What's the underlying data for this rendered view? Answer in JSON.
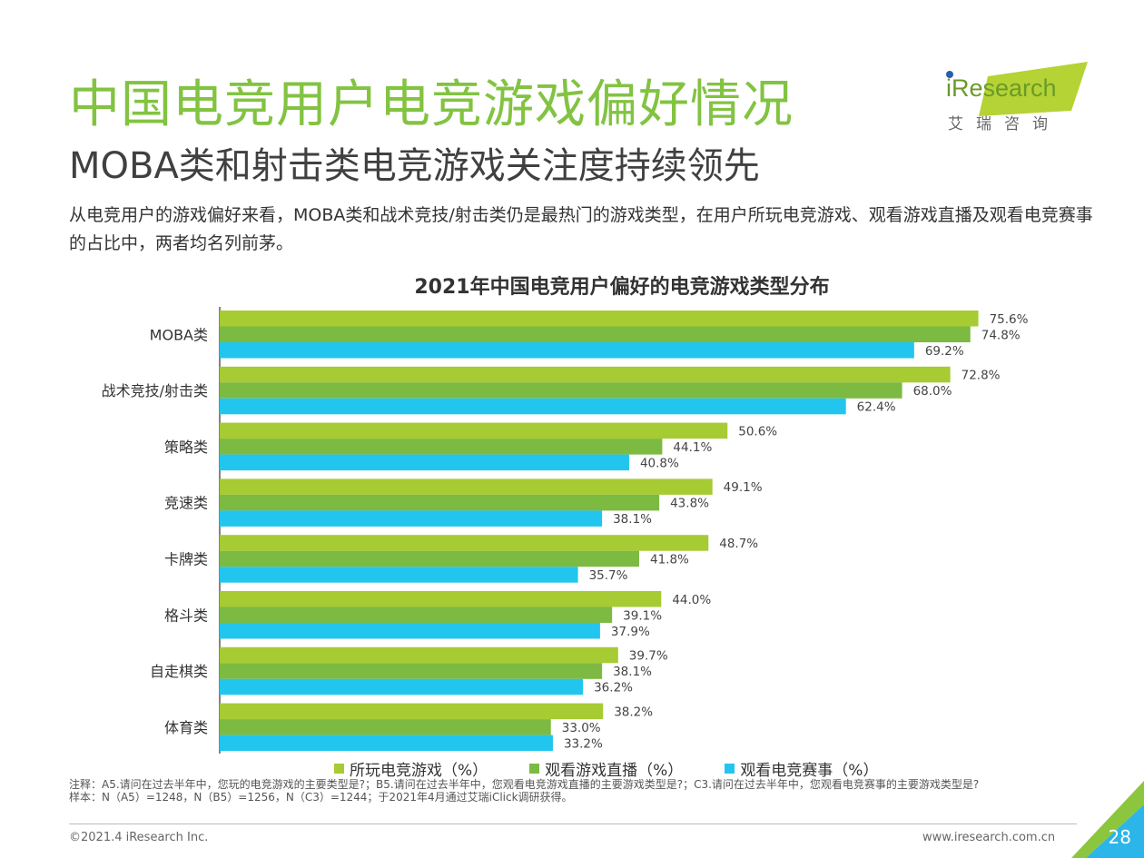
{
  "header": {
    "title": "中国电竞用户电竞游戏偏好情况",
    "subtitle": "MOBA类和射击类电竞游戏关注度持续领先",
    "summary": "从电竞用户的游戏偏好来看，MOBA类和战术竞技/射击类仍是最热门的游戏类型，在用户所玩电竞游戏、观看游戏直播及观看电竞赛事的占比中，两者均名列前茅。"
  },
  "logo": {
    "brand": "iResearch",
    "chinese": "艾瑞咨询"
  },
  "colors": {
    "title_green": "#82c341",
    "play": "#a6cb33",
    "stream": "#7cba42",
    "event": "#22c5ed",
    "corner_green": "#8cc63f",
    "corner_blue": "#2cb5e8"
  },
  "chart_data": {
    "type": "bar",
    "orientation": "horizontal",
    "title": "2021年中国电竞用户偏好的电竞游戏类型分布",
    "categories": [
      "MOBA类",
      "战术竞技/射击类",
      "策略类",
      "竞速类",
      "卡牌类",
      "格斗类",
      "自走棋类",
      "体育类"
    ],
    "series": [
      {
        "name": "所玩电竞游戏（%）",
        "values": [
          75.6,
          72.8,
          50.6,
          49.1,
          48.7,
          44.0,
          39.7,
          38.2
        ],
        "labels": [
          "75.6%",
          "72.8%",
          "50.6%",
          "49.1%",
          "48.7%",
          "44.0%",
          "39.7%",
          "38.2%"
        ]
      },
      {
        "name": "观看游戏直播（%）",
        "values": [
          74.8,
          68.0,
          44.1,
          43.8,
          41.8,
          39.1,
          38.1,
          33.0
        ],
        "labels": [
          "74.8%",
          "68.0%",
          "44.1%",
          "43.8%",
          "41.8%",
          "39.1%",
          "38.1%",
          "33.0%"
        ]
      },
      {
        "name": "观看电竞赛事（%）",
        "values": [
          69.2,
          62.4,
          40.8,
          38.1,
          35.7,
          37.9,
          36.2,
          33.2
        ],
        "labels": [
          "69.2%",
          "62.4%",
          "40.8%",
          "38.1%",
          "35.7%",
          "37.9%",
          "36.2%",
          "33.2%"
        ]
      }
    ],
    "xlim": [
      0,
      80
    ],
    "grid": false,
    "legend_position": "bottom"
  },
  "notes": {
    "note": "注释：A5.请问在过去半年中，您玩的电竞游戏的主要类型是?；B5.请问在过去半年中，您观看电竞游戏直播的主要游戏类型是?；C3.请问在过去半年中，您观看电竞赛事的主要游戏类型是?",
    "sample": "样本：N（A5）=1248，N（B5）=1256，N（C3）=1244；于2021年4月通过艾瑞iClick调研获得。"
  },
  "footer": {
    "copyright": "©2021.4 iResearch Inc.",
    "website": "www.iresearch.com.cn",
    "page_number": "28"
  }
}
